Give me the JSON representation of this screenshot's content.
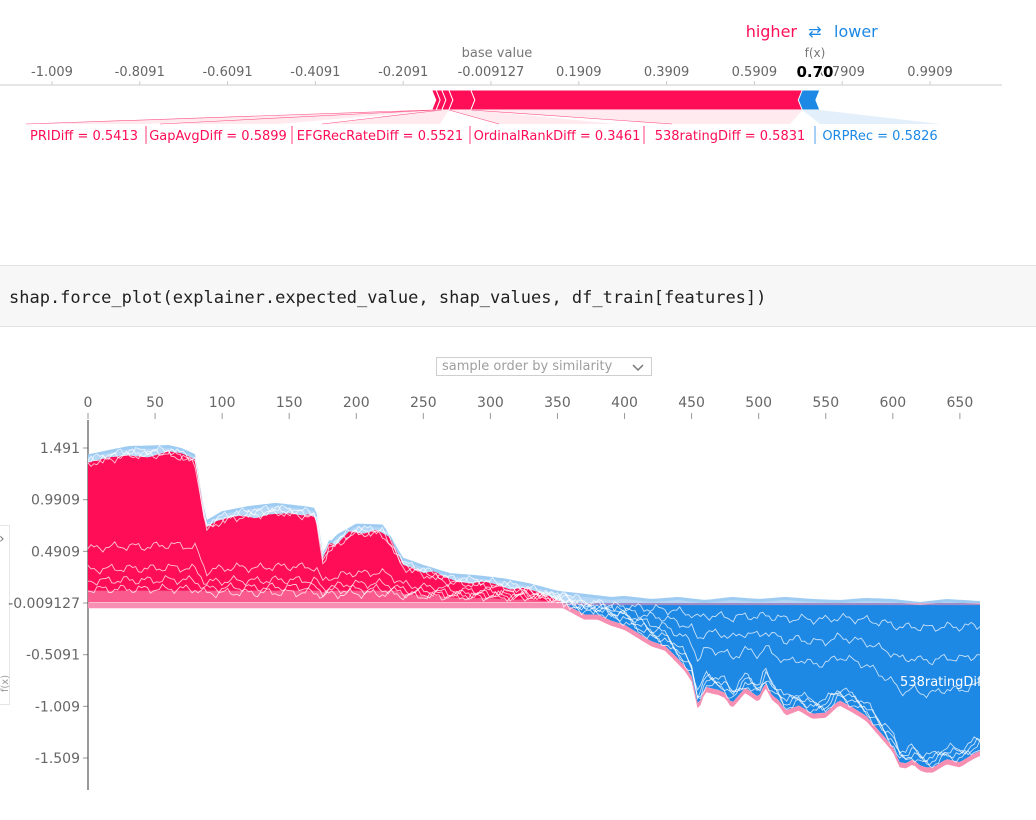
{
  "single_plot": {
    "legend_higher": "higher",
    "legend_lower": "lower",
    "legend_arrow": "⇄",
    "base_value_label": "base value",
    "fx_label": "f(x)",
    "fx_value": "0.70",
    "colors": {
      "positive": "#ff0d57",
      "negative": "#1e88e5",
      "positive_light": "#ffc3d5",
      "negative_light": "#d1e6fa"
    }
  },
  "code_cell": {
    "code": "shap.force_plot(explainer.expected_value, shap_values, df_train[features])"
  },
  "stacked_plot": {
    "ordering_label": "sample order by similarity",
    "side_label": "f(x)",
    "feature_label": "538ratingDiff"
  },
  "chart_data": [
    {
      "type": "force",
      "title": "",
      "base_value": -0.009127,
      "output_value": 0.7,
      "xlim": [
        -1.109,
        1.0909
      ],
      "tick_labels": [
        "-1.009",
        "-0.8091",
        "-0.6091",
        "-0.4091",
        "-0.2091",
        "-0.009127",
        "0.1909",
        "0.3909",
        "0.5909",
        "0.7909",
        "0.9909"
      ],
      "ticks": [
        -1.009,
        -0.8091,
        -0.6091,
        -0.4091,
        -0.2091,
        -0.009127,
        0.1909,
        0.3909,
        0.5909,
        0.7909,
        0.9909
      ],
      "features": [
        {
          "name": "PRIDiff",
          "value": "0.5413",
          "shap": 0.01,
          "direction": "higher"
        },
        {
          "name": "GapAvgDiff",
          "value": "0.5899",
          "shap": 0.013,
          "direction": "higher"
        },
        {
          "name": "EFGRecRateDiff",
          "value": "0.5521",
          "shap": 0.016,
          "direction": "higher"
        },
        {
          "name": "OrdinalRankDiff",
          "value": "0.3461",
          "shap": 0.05,
          "direction": "higher"
        },
        {
          "name": "538ratingDiff",
          "value": "0.5831",
          "shap": 0.755,
          "direction": "higher"
        },
        {
          "name": "ORPRec",
          "value": "0.5826",
          "shap": -0.04,
          "direction": "lower"
        }
      ]
    },
    {
      "type": "area",
      "title": "",
      "xlabel": "",
      "ylabel": "f(x)",
      "xlim": [
        0,
        665
      ],
      "ylim": [
        -1.79,
        1.66
      ],
      "xticks": [
        0,
        50,
        100,
        150,
        200,
        250,
        300,
        350,
        400,
        450,
        500,
        550,
        600,
        650
      ],
      "yticks": [
        1.491,
        0.9909,
        0.4909,
        -0.009127,
        -0.5091,
        -1.009,
        -1.509
      ],
      "ytick_labels": [
        "1.491",
        "0.9909",
        "0.4909",
        "-0.009127",
        "-0.5091",
        "-1.009",
        "-1.509"
      ],
      "base_value": -0.009127,
      "annotation": "538ratingDiff",
      "output_curve": {
        "x": [
          0,
          15,
          30,
          45,
          60,
          70,
          80,
          85,
          88,
          95,
          105,
          115,
          125,
          135,
          150,
          160,
          165,
          170,
          175,
          180,
          185,
          195,
          205,
          215,
          225,
          235,
          245,
          250,
          258,
          265,
          275,
          285,
          295,
          305,
          315,
          325,
          340,
          350,
          360,
          370,
          380,
          390,
          400,
          410,
          420,
          430,
          440,
          445,
          450,
          455,
          460,
          470,
          475,
          480,
          490,
          500,
          505,
          510,
          515,
          520,
          530,
          540,
          550,
          560,
          570,
          580,
          590,
          600,
          605,
          610,
          615,
          620,
          625,
          630,
          640,
          650,
          660,
          665
        ],
        "y": [
          1.35,
          1.4,
          1.42,
          1.4,
          1.46,
          1.44,
          1.38,
          0.98,
          0.72,
          0.78,
          0.82,
          0.84,
          0.81,
          0.85,
          0.86,
          0.84,
          0.85,
          0.82,
          0.42,
          0.58,
          0.55,
          0.69,
          0.66,
          0.7,
          0.63,
          0.36,
          0.32,
          0.28,
          0.3,
          0.25,
          0.2,
          0.18,
          0.2,
          0.17,
          0.12,
          0.14,
          0.08,
          0.02,
          -0.05,
          -0.12,
          -0.12,
          -0.18,
          -0.22,
          -0.3,
          -0.38,
          -0.42,
          -0.55,
          -0.62,
          -0.72,
          -1.01,
          -0.82,
          -0.85,
          -0.88,
          -0.98,
          -0.83,
          -0.92,
          -0.78,
          -0.9,
          -0.95,
          -1.05,
          -1.0,
          -1.08,
          -1.07,
          -0.95,
          -1.02,
          -1.1,
          -1.25,
          -1.4,
          -1.55,
          -1.56,
          -1.52,
          -1.58,
          -1.6,
          -1.6,
          -1.52,
          -1.55,
          -1.47,
          -1.44
        ]
      },
      "upper_curve": {
        "x": [
          0,
          30,
          60,
          70,
          80,
          85,
          88,
          100,
          120,
          140,
          160,
          170,
          175,
          185,
          200,
          220,
          235,
          250,
          270,
          290,
          310,
          330,
          350,
          370,
          390,
          400,
          420,
          440,
          460,
          480,
          500,
          520,
          540,
          560,
          580,
          600,
          620,
          640,
          665
        ],
        "y": [
          1.4,
          1.48,
          1.49,
          1.46,
          1.4,
          1.0,
          0.76,
          0.85,
          0.9,
          0.93,
          0.9,
          0.88,
          0.45,
          0.62,
          0.73,
          0.72,
          0.4,
          0.33,
          0.25,
          0.23,
          0.2,
          0.15,
          0.08,
          0.05,
          0.02,
          0.03,
          0.0,
          0.02,
          -0.01,
          0.02,
          0.0,
          0.02,
          0.0,
          -0.01,
          0.01,
          0.0,
          -0.03,
          0.0,
          -0.02
        ]
      }
    }
  ]
}
